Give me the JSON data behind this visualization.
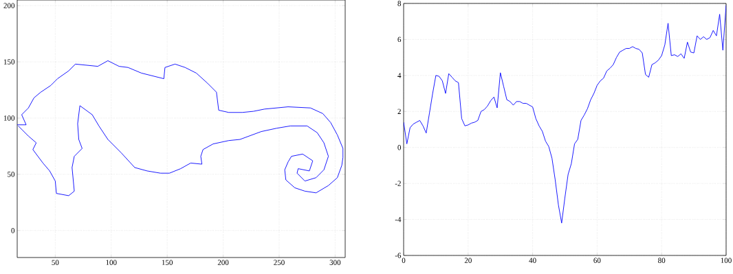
{
  "chart_data": [
    {
      "type": "line",
      "xlim": [
        16,
        309
      ],
      "ylim": [
        -24,
        205
      ],
      "xticks": [
        50,
        100,
        150,
        200,
        250,
        300
      ],
      "yticks": [
        0,
        50,
        100,
        150,
        200
      ],
      "grid": true,
      "line_style": "solid",
      "series": [
        {
          "color": "#0000ff",
          "x": [
            16,
            24,
            20,
            26,
            31,
            37,
            46,
            52,
            62,
            68,
            88,
            97,
            107,
            115,
            127,
            147,
            148,
            157,
            166,
            176,
            186,
            194,
            196,
            205,
            217,
            227,
            237,
            258,
            278,
            289,
            296,
            302,
            307,
            307,
            306,
            302,
            294,
            283,
            273,
            264,
            256,
            255,
            258,
            261,
            271,
            280,
            277,
            267,
            266,
            273,
            283,
            290,
            294,
            290,
            284,
            275,
            260,
            248,
            234,
            215,
            205,
            191,
            182,
            180,
            181,
            171,
            162,
            152,
            144,
            132,
            121,
            109,
            97,
            89,
            83,
            72,
            70,
            71,
            74,
            67,
            65,
            67,
            62,
            51,
            50,
            45,
            39,
            30,
            33,
            26,
            21,
            17
          ],
          "values": [
            94,
            94,
            103,
            109,
            118,
            123,
            129,
            135,
            142,
            148,
            146,
            151,
            146,
            145,
            140,
            135,
            145,
            148,
            145,
            140,
            131,
            123,
            107,
            105,
            105,
            106,
            108,
            110,
            109,
            104,
            96,
            85,
            73,
            65,
            58,
            47,
            40,
            33.5,
            35,
            38,
            45,
            54,
            61,
            66,
            68,
            62,
            53,
            55,
            51,
            44,
            47,
            54,
            66,
            78,
            87,
            93,
            93,
            91,
            88,
            81,
            80,
            77,
            72,
            66,
            59,
            60,
            55,
            51,
            51,
            53,
            56,
            69,
            81,
            93,
            103,
            111,
            95,
            81,
            73,
            66,
            56,
            35,
            31,
            33,
            44,
            53,
            60,
            72,
            78,
            84,
            89,
            93
          ]
        }
      ]
    },
    {
      "type": "line",
      "xlim": [
        0,
        100
      ],
      "ylim": [
        -6,
        8
      ],
      "xticks": [
        0,
        20,
        40,
        60,
        80,
        100
      ],
      "yticks": [
        -6,
        -4,
        -2,
        0,
        2,
        4,
        6,
        8
      ],
      "grid": true,
      "line_style": "solid",
      "series": [
        {
          "color": "#0000ff",
          "x": [
            0,
            1,
            2,
            3,
            4,
            5,
            6,
            7,
            8,
            9,
            10,
            11,
            12,
            13,
            14,
            15,
            16,
            17,
            18,
            19,
            20,
            21,
            22,
            23,
            24,
            25,
            26,
            27,
            28,
            29,
            30,
            31,
            32,
            33,
            34,
            35,
            36,
            37,
            38,
            39,
            40,
            41,
            42,
            43,
            44,
            45,
            46,
            47,
            48,
            49,
            50,
            51,
            52,
            53,
            54,
            55,
            56,
            57,
            58,
            59,
            60,
            61,
            62,
            63,
            64,
            65,
            66,
            67,
            68,
            69,
            70,
            71,
            72,
            73,
            74,
            75,
            76,
            77,
            78,
            79,
            80,
            81,
            82,
            83,
            84,
            85,
            86,
            87,
            88,
            89,
            90,
            91,
            92,
            93,
            94,
            95,
            96,
            97,
            98,
            99,
            100
          ],
          "values": [
            1.4,
            0.2,
            1.1,
            1.3,
            1.4,
            1.5,
            1.2,
            0.8,
            1.9,
            3.0,
            4.0,
            3.95,
            3.7,
            3.0,
            4.1,
            3.9,
            3.7,
            3.6,
            1.6,
            1.2,
            1.25,
            1.35,
            1.4,
            1.5,
            2.0,
            2.1,
            2.3,
            2.6,
            2.8,
            2.2,
            4.15,
            3.4,
            2.65,
            2.55,
            2.35,
            2.55,
            2.55,
            2.45,
            2.45,
            2.35,
            2.25,
            1.6,
            1.2,
            0.9,
            0.35,
            0.05,
            -0.6,
            -1.8,
            -3.2,
            -4.2,
            -2.8,
            -1.5,
            -0.9,
            0.2,
            0.45,
            1.5,
            1.8,
            2.15,
            2.65,
            3.0,
            3.45,
            3.7,
            3.85,
            4.25,
            4.4,
            4.6,
            5.0,
            5.3,
            5.4,
            5.5,
            5.5,
            5.6,
            5.5,
            5.45,
            5.25,
            4.05,
            3.9,
            4.6,
            4.7,
            4.85,
            5.1,
            5.7,
            6.9,
            5.1,
            5.15,
            5.05,
            5.2,
            4.95,
            5.85,
            5.3,
            5.25,
            6.2,
            6.0,
            6.15,
            6.0,
            6.1,
            6.5,
            6.2,
            7.4,
            5.4,
            7.9
          ]
        }
      ]
    }
  ]
}
